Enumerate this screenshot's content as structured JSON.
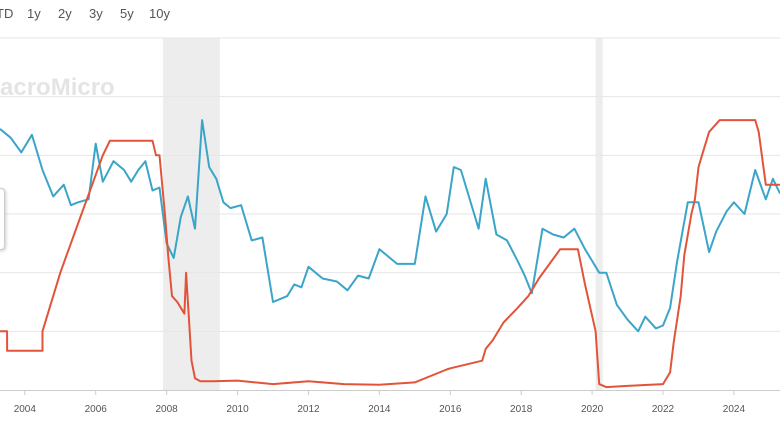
{
  "range_selector": {
    "buttons": [
      "TD",
      "1y",
      "2y",
      "3y",
      "5y",
      "10y"
    ]
  },
  "watermark": "acroMicro",
  "colors": {
    "series_blue": "#3aa5c9",
    "series_red": "#e2543a",
    "recession_band": "#ededed",
    "gridline": "#e6e6e6"
  },
  "chart_data": {
    "type": "line",
    "title": "",
    "xlabel": "",
    "ylabel": "",
    "x_ticks": [
      "2004",
      "2006",
      "2008",
      "2010",
      "2012",
      "2014",
      "2016",
      "2018",
      "2020",
      "2022",
      "2024"
    ],
    "xlim": [
      2003.3,
      2025.3
    ],
    "ylim": [
      0,
      6
    ],
    "grid": true,
    "legend": "none",
    "recession_bands": [
      [
        2007.9,
        2009.5
      ],
      [
        2020.1,
        2020.3
      ]
    ],
    "series": [
      {
        "color": "#3aa5c9",
        "x": [
          2003.3,
          2003.6,
          2003.9,
          2004.2,
          2004.5,
          2004.8,
          2005.1,
          2005.3,
          2005.5,
          2005.8,
          2006.0,
          2006.2,
          2006.5,
          2006.8,
          2007.0,
          2007.2,
          2007.4,
          2007.6,
          2007.8,
          2008.0,
          2008.2,
          2008.4,
          2008.6,
          2008.8,
          2009.0,
          2009.2,
          2009.4,
          2009.6,
          2009.8,
          2010.1,
          2010.4,
          2010.7,
          2011.0,
          2011.2,
          2011.4,
          2011.6,
          2011.8,
          2012.0,
          2012.4,
          2012.8,
          2013.1,
          2013.4,
          2013.7,
          2014.0,
          2014.5,
          2015.0,
          2015.3,
          2015.6,
          2015.9,
          2016.1,
          2016.3,
          2016.5,
          2016.8,
          2017.0,
          2017.3,
          2017.6,
          2017.9,
          2018.1,
          2018.3,
          2018.6,
          2018.9,
          2019.2,
          2019.5,
          2019.8,
          2020.0,
          2020.2,
          2020.4,
          2020.7,
          2021.0,
          2021.3,
          2021.5,
          2021.8,
          2022.0,
          2022.2,
          2022.4,
          2022.7,
          2023.0,
          2023.3,
          2023.5,
          2023.8,
          2024.0,
          2024.3,
          2024.6,
          2024.9,
          2025.1,
          2025.3
        ],
        "values": [
          4.45,
          4.3,
          4.05,
          4.35,
          3.75,
          3.3,
          3.5,
          3.15,
          3.2,
          3.25,
          4.2,
          3.55,
          3.9,
          3.75,
          3.55,
          3.75,
          3.9,
          3.4,
          3.45,
          2.5,
          2.25,
          2.95,
          3.3,
          2.75,
          4.6,
          3.8,
          3.6,
          3.2,
          3.1,
          3.15,
          2.55,
          2.6,
          1.5,
          1.55,
          1.6,
          1.8,
          1.75,
          2.1,
          1.9,
          1.85,
          1.7,
          1.95,
          1.9,
          2.4,
          2.15,
          2.15,
          3.3,
          2.7,
          3.0,
          3.8,
          3.75,
          3.35,
          2.75,
          3.6,
          2.65,
          2.55,
          2.2,
          1.95,
          1.65,
          2.75,
          2.65,
          2.6,
          2.75,
          2.4,
          2.2,
          2.0,
          2.0,
          1.45,
          1.2,
          1.0,
          1.25,
          1.05,
          1.1,
          1.4,
          2.2,
          3.2,
          3.2,
          2.35,
          2.7,
          3.05,
          3.2,
          3.0,
          3.75,
          3.25,
          3.6,
          3.35
        ]
      },
      {
        "color": "#e2543a",
        "x": [
          2003.3,
          2003.5,
          2003.5,
          2004.5,
          2004.5,
          2004.7,
          2005.0,
          2005.3,
          2005.6,
          2005.9,
          2006.2,
          2006.4,
          2006.5,
          2007.6,
          2007.7,
          2007.8,
          2007.95,
          2008.05,
          2008.15,
          2008.3,
          2008.5,
          2008.55,
          2008.7,
          2008.8,
          2008.95,
          2009.3,
          2010.0,
          2011.0,
          2012.0,
          2013.0,
          2014.0,
          2015.0,
          2015.9,
          2016.0,
          2016.9,
          2017.0,
          2017.2,
          2017.5,
          2017.9,
          2018.2,
          2018.5,
          2018.8,
          2019.1,
          2019.6,
          2019.8,
          2020.1,
          2020.2,
          2020.4,
          2021.0,
          2022.0,
          2022.2,
          2022.3,
          2022.5,
          2022.6,
          2022.8,
          2022.9,
          2023.0,
          2023.1,
          2023.3,
          2023.6,
          2024.6,
          2024.7,
          2024.9,
          2025.3
        ],
        "values": [
          1.0,
          1.0,
          0.67,
          0.67,
          1.0,
          1.4,
          2.0,
          2.5,
          3.0,
          3.5,
          4.0,
          4.25,
          4.25,
          4.25,
          4.0,
          4.0,
          3.0,
          2.25,
          1.6,
          1.5,
          1.3,
          2.0,
          0.5,
          0.2,
          0.15,
          0.15,
          0.16,
          0.1,
          0.15,
          0.1,
          0.09,
          0.13,
          0.35,
          0.37,
          0.5,
          0.7,
          0.85,
          1.15,
          1.4,
          1.6,
          1.9,
          2.15,
          2.4,
          2.4,
          1.8,
          1.0,
          0.1,
          0.05,
          0.07,
          0.1,
          0.3,
          0.8,
          1.6,
          2.3,
          3.0,
          3.25,
          3.8,
          4.0,
          4.4,
          4.6,
          4.6,
          4.4,
          3.5,
          3.5
        ]
      }
    ]
  }
}
